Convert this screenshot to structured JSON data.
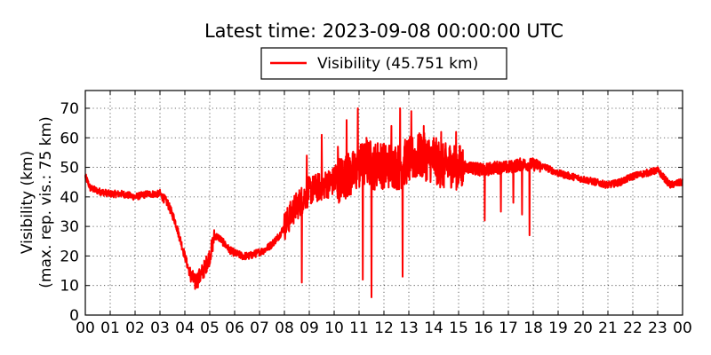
{
  "chart_data": {
    "type": "line",
    "title": "Latest time: 2023-09-08 00:00:00 UTC",
    "ylabel": "Visibility (km)",
    "ylabel2": "(max. rep. vis.: 75 km)",
    "xlabel": "",
    "xlim": [
      0,
      24
    ],
    "ylim": [
      0,
      76
    ],
    "grid": true,
    "legend_position": "top-center",
    "x_tick_labels": [
      "00",
      "01",
      "02",
      "03",
      "04",
      "05",
      "06",
      "07",
      "08",
      "09",
      "10",
      "11",
      "12",
      "13",
      "14",
      "15",
      "16",
      "17",
      "18",
      "19",
      "20",
      "21",
      "22",
      "23",
      "00"
    ],
    "y_ticks": [
      0,
      10,
      20,
      30,
      40,
      50,
      60,
      70
    ],
    "series": [
      {
        "name": "Visibility (45.751 km)",
        "color": "#ff0000",
        "x": [
          0.0,
          0.2,
          0.5,
          1.0,
          1.5,
          2.0,
          2.5,
          3.0,
          3.3,
          3.6,
          3.8,
          4.0,
          4.2,
          4.4,
          4.6,
          4.8,
          5.0,
          5.2,
          5.4,
          5.6,
          5.8,
          6.0,
          6.3,
          6.6,
          6.9,
          7.2,
          7.5,
          7.8,
          8.0,
          8.2,
          8.4,
          8.6,
          8.8,
          9.0,
          9.3,
          9.6,
          9.9,
          10.2,
          10.5,
          10.8,
          11.0,
          11.2,
          11.4,
          11.6,
          11.8,
          12.0,
          12.3,
          12.6,
          12.9,
          13.2,
          13.5,
          13.8,
          14.1,
          14.4,
          14.7,
          15.0,
          15.5,
          16.0,
          16.5,
          17.0,
          17.5,
          18.0,
          18.5,
          19.0,
          19.5,
          20.0,
          20.5,
          21.0,
          21.5,
          22.0,
          22.5,
          23.0,
          23.5,
          24.0
        ],
        "y": [
          47,
          43,
          42,
          41,
          41,
          40,
          41,
          41,
          38,
          32,
          26,
          20,
          14,
          11,
          13,
          16,
          20,
          27,
          26,
          24,
          22,
          21,
          20,
          20,
          21,
          22,
          24,
          27,
          30,
          33,
          36,
          38,
          40,
          42,
          43,
          44,
          45,
          46,
          47,
          48,
          50,
          51,
          52,
          50,
          52,
          50,
          51,
          50,
          52,
          53,
          54,
          53,
          52,
          50,
          51,
          50,
          50,
          49,
          50,
          50,
          51,
          51,
          50,
          48,
          47,
          46,
          45,
          44,
          45,
          47,
          48,
          49,
          44,
          45
        ],
        "spikes": [
          {
            "x": 8.7,
            "y": 11
          },
          {
            "x": 8.9,
            "y": 54
          },
          {
            "x": 9.5,
            "y": 61
          },
          {
            "x": 10.15,
            "y": 57
          },
          {
            "x": 10.5,
            "y": 66
          },
          {
            "x": 10.95,
            "y": 70
          },
          {
            "x": 11.15,
            "y": 12
          },
          {
            "x": 11.3,
            "y": 60
          },
          {
            "x": 11.5,
            "y": 6
          },
          {
            "x": 12.0,
            "y": 58
          },
          {
            "x": 12.3,
            "y": 64
          },
          {
            "x": 12.65,
            "y": 70
          },
          {
            "x": 12.75,
            "y": 13
          },
          {
            "x": 13.1,
            "y": 69
          },
          {
            "x": 13.6,
            "y": 64
          },
          {
            "x": 14.0,
            "y": 60
          },
          {
            "x": 14.3,
            "y": 62
          },
          {
            "x": 14.9,
            "y": 62
          },
          {
            "x": 16.05,
            "y": 32
          },
          {
            "x": 16.7,
            "y": 35
          },
          {
            "x": 17.2,
            "y": 38
          },
          {
            "x": 17.55,
            "y": 34
          },
          {
            "x": 17.85,
            "y": 27
          }
        ]
      }
    ]
  }
}
